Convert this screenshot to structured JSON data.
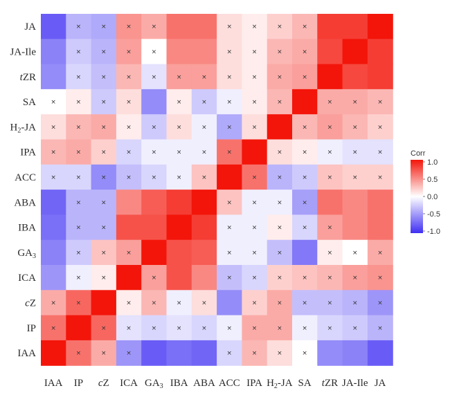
{
  "chart_data": {
    "type": "heatmap",
    "row_labels": [
      "JA",
      "JA-Ile",
      "tZR",
      "SA",
      "H2-JA",
      "IPA",
      "ACC",
      "ABA",
      "IBA",
      "GA3",
      "ICA",
      "cZ",
      "IP",
      "IAA"
    ],
    "col_labels": [
      "IAA",
      "IP",
      "cZ",
      "ICA",
      "GA3",
      "IBA",
      "ABA",
      "ACC",
      "IPA",
      "H2-JA",
      "SA",
      "tZR",
      "JA-Ile",
      "JA"
    ],
    "values": [
      [
        -0.75,
        -0.3,
        -0.35,
        0.4,
        0.3,
        0.55,
        0.55,
        0.1,
        0.05,
        0.15,
        0.25,
        0.8,
        0.8,
        1.0
      ],
      [
        -0.55,
        -0.2,
        -0.3,
        0.35,
        0.0,
        0.45,
        0.45,
        0.1,
        0.05,
        0.25,
        0.3,
        0.75,
        1.0,
        0.8
      ],
      [
        -0.5,
        -0.15,
        -0.25,
        0.25,
        -0.1,
        0.35,
        0.35,
        0.1,
        0.05,
        0.3,
        0.35,
        1.0,
        0.75,
        0.8
      ],
      [
        0.0,
        0.05,
        -0.2,
        0.1,
        -0.5,
        0.05,
        -0.2,
        -0.05,
        0.05,
        0.25,
        1.0,
        0.3,
        0.3,
        0.25
      ],
      [
        0.1,
        0.25,
        0.3,
        0.05,
        -0.2,
        0.1,
        -0.05,
        -0.35,
        0.1,
        1.0,
        0.25,
        0.35,
        0.25,
        0.15
      ],
      [
        0.25,
        0.3,
        0.15,
        -0.15,
        -0.05,
        -0.05,
        -0.05,
        0.55,
        1.0,
        0.1,
        0.05,
        -0.05,
        -0.1,
        -0.1
      ],
      [
        -0.15,
        -0.15,
        -0.5,
        -0.25,
        -0.15,
        -0.05,
        0.2,
        1.0,
        0.55,
        -0.3,
        -0.2,
        0.2,
        0.15,
        0.15
      ],
      [
        -0.7,
        -0.3,
        -0.3,
        0.45,
        0.65,
        0.8,
        1.0,
        0.2,
        -0.05,
        -0.05,
        -0.4,
        0.55,
        0.45,
        0.55
      ],
      [
        -0.65,
        -0.3,
        -0.3,
        0.7,
        0.7,
        1.0,
        0.8,
        -0.05,
        -0.05,
        0.05,
        -0.15,
        0.35,
        0.45,
        0.55
      ],
      [
        -0.55,
        -0.2,
        0.2,
        0.35,
        1.0,
        0.7,
        0.65,
        -0.05,
        -0.05,
        -0.25,
        -0.6,
        0.05,
        0.0,
        0.3
      ],
      [
        -0.45,
        -0.05,
        0.05,
        1.0,
        0.35,
        0.7,
        0.45,
        -0.25,
        -0.15,
        0.15,
        0.2,
        0.25,
        0.35,
        0.4
      ],
      [
        0.3,
        0.6,
        1.0,
        0.05,
        0.25,
        -0.05,
        0.1,
        -0.5,
        0.15,
        0.3,
        -0.25,
        -0.25,
        -0.3,
        -0.45
      ],
      [
        0.55,
        1.0,
        0.6,
        -0.1,
        -0.15,
        -0.1,
        -0.15,
        -0.05,
        0.3,
        0.3,
        -0.05,
        -0.15,
        -0.2,
        -0.3
      ],
      [
        1.0,
        0.55,
        0.3,
        -0.45,
        -0.75,
        -0.65,
        -0.7,
        -0.15,
        0.25,
        0.1,
        0.0,
        -0.5,
        -0.55,
        -0.75
      ]
    ],
    "marks": [
      [
        0,
        1,
        1,
        1,
        1,
        0,
        0,
        1,
        1,
        1,
        1,
        0,
        0,
        0
      ],
      [
        0,
        1,
        1,
        1,
        1,
        0,
        0,
        1,
        1,
        1,
        1,
        0,
        0,
        0
      ],
      [
        0,
        1,
        1,
        1,
        1,
        1,
        1,
        1,
        1,
        1,
        1,
        0,
        0,
        0
      ],
      [
        1,
        1,
        1,
        1,
        0,
        1,
        1,
        1,
        1,
        1,
        0,
        1,
        1,
        1
      ],
      [
        1,
        1,
        1,
        1,
        1,
        1,
        1,
        1,
        1,
        0,
        1,
        1,
        1,
        1
      ],
      [
        1,
        1,
        1,
        1,
        1,
        1,
        1,
        1,
        0,
        1,
        1,
        1,
        1,
        1
      ],
      [
        1,
        1,
        1,
        1,
        1,
        1,
        1,
        0,
        1,
        1,
        1,
        1,
        1,
        1
      ],
      [
        0,
        1,
        1,
        0,
        0,
        0,
        0,
        1,
        1,
        1,
        1,
        0,
        0,
        0
      ],
      [
        0,
        1,
        1,
        0,
        0,
        0,
        0,
        1,
        1,
        1,
        1,
        1,
        0,
        0
      ],
      [
        0,
        1,
        1,
        1,
        0,
        0,
        0,
        1,
        1,
        1,
        0,
        1,
        1,
        1
      ],
      [
        0,
        1,
        1,
        0,
        1,
        0,
        0,
        1,
        1,
        1,
        1,
        1,
        1,
        1
      ],
      [
        1,
        1,
        0,
        1,
        1,
        1,
        1,
        0,
        1,
        1,
        1,
        1,
        1,
        1
      ],
      [
        1,
        0,
        1,
        1,
        1,
        1,
        1,
        1,
        1,
        1,
        1,
        1,
        1,
        1
      ],
      [
        0,
        1,
        1,
        1,
        0,
        0,
        0,
        1,
        1,
        1,
        1,
        0,
        0,
        0
      ]
    ],
    "mark_symbol": "×",
    "legend": {
      "title": "Corr",
      "ticks": [
        "1.0",
        "0.5",
        "0.0",
        "-0.5",
        "-1.0"
      ],
      "placement": "right"
    },
    "scale": {
      "min": -1.0,
      "max": 1.0,
      "low_color": "#3f2ff3",
      "mid_color": "#ffffff",
      "high_color": "#f3150a"
    }
  }
}
